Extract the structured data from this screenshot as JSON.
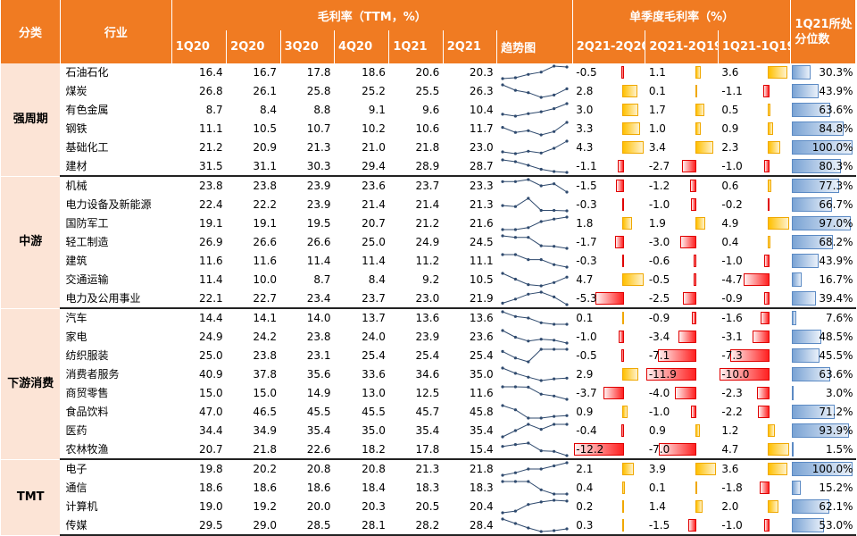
{
  "header": {
    "category": "分类",
    "industry": "行业",
    "gm_group": "毛利率（TTM，%）",
    "q_group": "单季度毛利率（%）",
    "periods": [
      "1Q20",
      "2Q20",
      "3Q20",
      "4Q20",
      "1Q21",
      "2Q21"
    ],
    "trend": "趋势图",
    "chg_cols": [
      "2Q21-2Q20",
      "2Q21-2Q19",
      "1Q21-1Q19"
    ],
    "pct_col": "1Q21所处分位数"
  },
  "colors": {
    "header_bg": "#f07b22",
    "category_bg": "#fce4d6",
    "pos_bar": "#ffc000",
    "neg_bar": "#ff2020",
    "pct_bar": "#7aa3d4",
    "spark": "#2f4a6e"
  },
  "groups": [
    {
      "name": "强周期",
      "rows": [
        {
          "industry": "石油石化",
          "gm": [
            16.4,
            16.7,
            17.8,
            18.6,
            20.6,
            20.3
          ],
          "chg": [
            -0.5,
            1.1,
            3.6
          ],
          "pct": 30.3
        },
        {
          "industry": "煤炭",
          "gm": [
            26.8,
            26.1,
            25.8,
            25.2,
            25.5,
            26.3
          ],
          "chg": [
            2.8,
            0.1,
            -1.1
          ],
          "pct": 43.9
        },
        {
          "industry": "有色金属",
          "gm": [
            8.7,
            8.4,
            8.8,
            9.1,
            9.6,
            10.4
          ],
          "chg": [
            3.0,
            1.7,
            0.5
          ],
          "pct": 63.6
        },
        {
          "industry": "钢铁",
          "gm": [
            11.1,
            10.5,
            10.7,
            10.2,
            10.6,
            11.7
          ],
          "chg": [
            3.3,
            1.0,
            0.9
          ],
          "pct": 84.8
        },
        {
          "industry": "基础化工",
          "gm": [
            21.2,
            20.9,
            21.3,
            21.0,
            21.8,
            23.0
          ],
          "chg": [
            4.3,
            3.4,
            2.3
          ],
          "pct": 100.0
        },
        {
          "industry": "建材",
          "gm": [
            31.5,
            31.1,
            30.3,
            29.4,
            28.9,
            28.7
          ],
          "chg": [
            -1.1,
            -2.7,
            -1.0
          ],
          "pct": 80.3
        }
      ]
    },
    {
      "name": "中游",
      "rows": [
        {
          "industry": "机械",
          "gm": [
            23.8,
            23.8,
            23.9,
            23.6,
            23.7,
            23.3
          ],
          "chg": [
            -1.5,
            -1.2,
            0.6
          ],
          "pct": 77.3
        },
        {
          "industry": "电力设备及新能源",
          "gm": [
            22.4,
            22.2,
            23.9,
            21.4,
            21.4,
            21.3
          ],
          "chg": [
            -0.3,
            -1.0,
            -0.2
          ],
          "pct": 66.7
        },
        {
          "industry": "国防军工",
          "gm": [
            19.1,
            19.1,
            19.5,
            20.7,
            21.2,
            21.6
          ],
          "chg": [
            1.8,
            1.9,
            4.9
          ],
          "pct": 97.0
        },
        {
          "industry": "轻工制造",
          "gm": [
            26.9,
            26.6,
            26.6,
            25.0,
            24.9,
            24.5
          ],
          "chg": [
            -1.7,
            -3.0,
            0.4
          ],
          "pct": 68.2
        },
        {
          "industry": "建筑",
          "gm": [
            11.6,
            11.6,
            11.4,
            11.4,
            11.2,
            11.1
          ],
          "chg": [
            -0.3,
            -0.6,
            -1.0
          ],
          "pct": 43.9
        },
        {
          "industry": "交通运输",
          "gm": [
            11.4,
            10.0,
            8.7,
            8.4,
            9.2,
            10.5
          ],
          "chg": [
            4.7,
            -0.5,
            -4.7
          ],
          "pct": 16.7
        },
        {
          "industry": "电力及公用事业",
          "gm": [
            22.1,
            22.7,
            23.4,
            23.7,
            23.0,
            21.9
          ],
          "chg": [
            -5.3,
            -2.5,
            -0.9
          ],
          "pct": 39.4
        }
      ]
    },
    {
      "name": "下游消费",
      "rows": [
        {
          "industry": "汽车",
          "gm": [
            14.4,
            14.1,
            14.0,
            13.7,
            13.6,
            13.6
          ],
          "chg": [
            0.1,
            -0.9,
            -1.6
          ],
          "pct": 7.6
        },
        {
          "industry": "家电",
          "gm": [
            24.9,
            24.2,
            23.8,
            24.0,
            23.9,
            23.6
          ],
          "chg": [
            -1.0,
            -3.4,
            -3.1
          ],
          "pct": 48.5
        },
        {
          "industry": "纺织服装",
          "gm": [
            25.0,
            23.8,
            23.1,
            25.4,
            25.4,
            25.4
          ],
          "chg": [
            -0.5,
            -7.1,
            -7.3
          ],
          "pct": 45.5
        },
        {
          "industry": "消费者服务",
          "gm": [
            40.9,
            37.8,
            35.6,
            33.6,
            34.6,
            35.0
          ],
          "chg": [
            2.9,
            -11.9,
            -10.0
          ],
          "pct": 63.6
        },
        {
          "industry": "商贸零售",
          "gm": [
            15.0,
            15.0,
            14.9,
            13.0,
            12.5,
            11.6
          ],
          "chg": [
            -3.7,
            -4.0,
            -2.3
          ],
          "pct": 3.0
        },
        {
          "industry": "食品饮料",
          "gm": [
            47.0,
            46.5,
            45.5,
            45.5,
            45.7,
            45.8
          ],
          "chg": [
            0.9,
            -1.0,
            -2.2
          ],
          "pct": 71.2
        },
        {
          "industry": "医药",
          "gm": [
            34.4,
            34.9,
            35.4,
            35.0,
            35.4,
            35.4
          ],
          "chg": [
            -0.4,
            0.9,
            1.2
          ],
          "pct": 93.9
        },
        {
          "industry": "农林牧渔",
          "gm": [
            20.7,
            21.8,
            22.6,
            18.2,
            17.8,
            15.4
          ],
          "chg": [
            -12.2,
            -7.0,
            4.7
          ],
          "pct": 1.5
        }
      ]
    },
    {
      "name": "TMT",
      "rows": [
        {
          "industry": "电子",
          "gm": [
            19.8,
            20.2,
            20.8,
            20.8,
            21.3,
            21.8
          ],
          "chg": [
            2.1,
            3.9,
            3.6
          ],
          "pct": 100.0
        },
        {
          "industry": "通信",
          "gm": [
            18.6,
            18.6,
            18.6,
            18.4,
            18.3,
            18.3
          ],
          "chg": [
            0.4,
            0.1,
            -1.8
          ],
          "pct": 15.2
        },
        {
          "industry": "计算机",
          "gm": [
            19.0,
            19.2,
            20.0,
            20.3,
            20.5,
            20.4
          ],
          "chg": [
            0.2,
            1.4,
            2.0
          ],
          "pct": 62.1
        },
        {
          "industry": "传媒",
          "gm": [
            29.5,
            29.0,
            28.5,
            28.1,
            28.2,
            28.4
          ],
          "chg": [
            0.3,
            -1.5,
            -1.0
          ],
          "pct": 53.0
        }
      ]
    }
  ]
}
